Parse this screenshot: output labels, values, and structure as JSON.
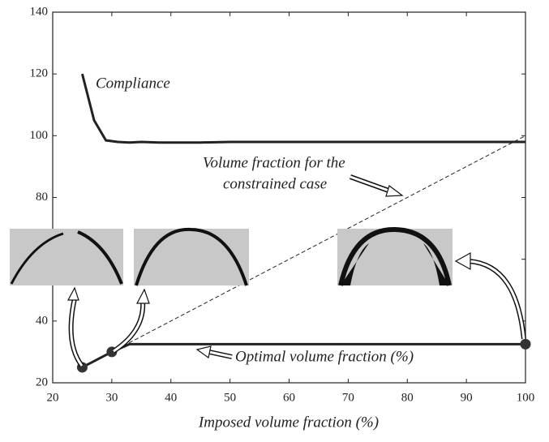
{
  "chart_data": {
    "type": "line",
    "xlabel": "Imposed volume fraction (%)",
    "xlim": [
      20,
      100
    ],
    "xticks": [
      20,
      30,
      40,
      50,
      60,
      70,
      80,
      90,
      100
    ],
    "ylim": [
      20,
      140
    ],
    "yticks": [
      20,
      40,
      60,
      80,
      100,
      120,
      140
    ],
    "grid": false,
    "series": [
      {
        "name": "Compliance",
        "color": "#222222",
        "style": "solid",
        "x": [
          25,
          27,
          29,
          31,
          33,
          35,
          38,
          40,
          45,
          50,
          60,
          70,
          80,
          90,
          100
        ],
        "values": [
          120,
          105,
          98.5,
          98,
          97.8,
          98,
          97.8,
          97.8,
          97.8,
          98,
          98,
          98,
          98,
          98,
          98
        ]
      },
      {
        "name": "Volume fraction for the constrained case",
        "color": "#222222",
        "style": "dashed",
        "x": [
          30,
          100
        ],
        "values": [
          30,
          100
        ]
      },
      {
        "name": "Optimal volume fraction (%)",
        "color": "#222222",
        "style": "solid",
        "x": [
          25,
          30,
          33,
          100
        ],
        "values": [
          25,
          30,
          32.5,
          32.5
        ]
      }
    ],
    "points": {
      "x": [
        25,
        30,
        100
      ],
      "values": [
        25,
        30,
        32.5
      ],
      "color": "#333333"
    },
    "annotations": [
      "Compliance",
      "Volume fraction for the",
      "constrained case",
      "Optimal volume fraction (%)"
    ]
  }
}
